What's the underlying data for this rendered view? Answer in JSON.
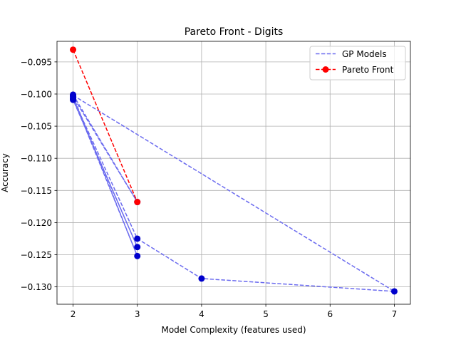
{
  "chart_data": {
    "type": "line",
    "title": "Pareto Front - Digits",
    "xlabel": "Model Complexity (features used)",
    "ylabel": "Accuracy",
    "xlim": [
      1.75,
      7.25
    ],
    "ylim": [
      -0.1327,
      -0.0918
    ],
    "xticks": [
      2,
      3,
      4,
      5,
      6,
      7
    ],
    "yticks": [
      -0.095,
      -0.1,
      -0.105,
      -0.11,
      -0.115,
      -0.12,
      -0.125,
      -0.13
    ],
    "ytick_labels": [
      "−0.095",
      "−0.100",
      "−0.105",
      "−0.110",
      "−0.115",
      "−0.120",
      "−0.125",
      "−0.130"
    ],
    "grid": true,
    "legend_position": "top-right",
    "series": [
      {
        "name": "GP Models",
        "style": "dashed-line",
        "color": "#6b6bef",
        "point_color": "#0000cc",
        "polylines": [
          [
            [
              2,
              -0.1002
            ],
            [
              7,
              -0.1307
            ],
            [
              4,
              -0.1287
            ],
            [
              3,
              -0.1225
            ],
            [
              2,
              -0.1007
            ]
          ],
          [
            [
              2,
              -0.1008
            ],
            [
              3,
              -0.1238
            ],
            [
              2,
              -0.1009
            ]
          ],
          [
            [
              2,
              -0.1003
            ],
            [
              3,
              -0.1252
            ],
            [
              2,
              -0.1006
            ]
          ],
          [
            [
              2,
              -0.1001
            ],
            [
              3,
              -0.1168
            ],
            [
              2,
              -0.1004
            ]
          ]
        ]
      },
      {
        "name": "Pareto Front",
        "style": "dashed-line-with-markers",
        "color": "#ff0000",
        "points": [
          [
            2,
            -0.0931
          ],
          [
            3,
            -0.1168
          ]
        ]
      }
    ]
  }
}
